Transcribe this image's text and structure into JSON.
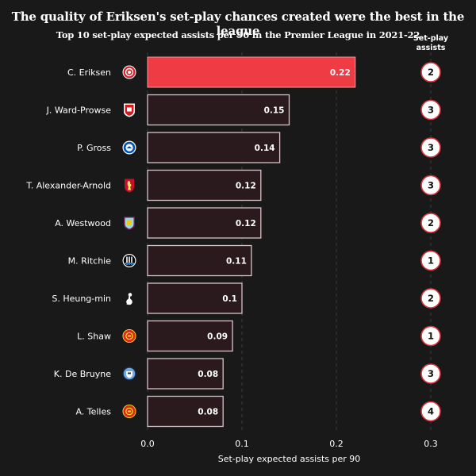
{
  "title": "The quality of Eriksen's set-play chances created were the best in the league",
  "subtitle": "Top 10 set-play expected assists per 90 in the Premier League in 2021-22",
  "assists_header": {
    "line1": "Set-play",
    "line2": "assists"
  },
  "colors": {
    "background": "#191919",
    "highlight_bar": "#ee3b44",
    "bar_fill": "#2a1a1e",
    "bar_stroke": "#d8c4c8",
    "grid": "#3d3d3d",
    "circle_fill": "#ffffff",
    "circle_stroke": "#d6333b",
    "circle_text": "#111111"
  },
  "chart_data": {
    "type": "bar",
    "orientation": "horizontal",
    "title": "The quality of Eriksen's set-play chances created were the best in the league",
    "subtitle": "Top 10 set-play expected assists per 90 in the Premier League in 2021-22",
    "xlabel": "Set-play expected assists per 90",
    "xlim": [
      0,
      0.3
    ],
    "xticks": [
      {
        "value": 0,
        "label": "0.0"
      },
      {
        "value": 0.1,
        "label": "0.1"
      },
      {
        "value": 0.2,
        "label": "0.2"
      },
      {
        "value": 0.3,
        "label": "0.3"
      }
    ],
    "grid": true,
    "categories": [
      "C. Eriksen",
      "J. Ward-Prowse",
      "P. Gross",
      "T. Alexander-Arnold",
      "A. Westwood",
      "M. Ritchie",
      "S. Heung-min",
      "L. Shaw",
      "K. De Bruyne",
      "A. Telles"
    ],
    "values": [
      0.22,
      0.15,
      0.14,
      0.12,
      0.12,
      0.11,
      0.1,
      0.09,
      0.08,
      0.08
    ],
    "value_labels": [
      "0.22",
      "0.15",
      "0.14",
      "0.12",
      "0.12",
      "0.11",
      "0.1",
      "0.09",
      "0.08",
      "0.08"
    ],
    "set_play_assists": [
      2,
      3,
      3,
      3,
      2,
      1,
      2,
      1,
      3,
      4
    ],
    "club_badges": [
      "brentford-badge",
      "southampton-badge",
      "brighton-badge",
      "liverpool-badge",
      "burnley-badge",
      "newcastle-badge",
      "tottenham-badge",
      "manchester-united-badge",
      "manchester-city-badge",
      "manchester-united-badge"
    ],
    "highlight_index": 0
  }
}
